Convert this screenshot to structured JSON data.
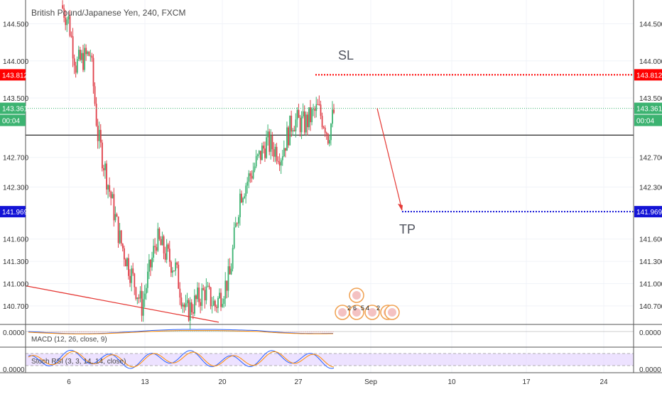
{
  "header": {
    "title": "British Pound/Japanese Yen, 240, FXCM"
  },
  "chart_data": [
    {
      "type": "candlestick",
      "title": "British Pound/Japanese Yen, 240, FXCM",
      "ylim": [
        140.45,
        144.82
      ],
      "y_ticks": [
        "144.500",
        "144.000",
        "143.500",
        "142.700",
        "142.300",
        "141.600",
        "141.300",
        "141.000",
        "140.700"
      ],
      "y_tick_values": [
        144.5,
        144.0,
        143.5,
        142.7,
        142.3,
        141.6,
        141.3,
        141.0,
        140.7
      ],
      "x_ticks": [
        "6",
        "13",
        "20",
        "27",
        "Sep",
        "10",
        "17",
        "24"
      ],
      "price_badges": {
        "sl": {
          "text": "143.812",
          "value": 143.812,
          "color": "#ff0000"
        },
        "current": {
          "text": "143.361",
          "value": 143.361,
          "color": "#3cb371"
        },
        "countdown": {
          "text": "00:04",
          "color": "#3cb371"
        },
        "tp": {
          "text": "141.969",
          "value": 141.969,
          "color": "#1414d6"
        }
      },
      "support_line": {
        "value": 143.0
      },
      "annotations": {
        "sl_label": "SL",
        "tp_label": "TP",
        "arrow": {
          "from": 143.36,
          "to": 141.99
        },
        "trendline": {
          "from": 140.97,
          "to": 140.48
        }
      },
      "event_icons": {
        "labels": [
          "2",
          "6",
          "5",
          "4",
          "2"
        ]
      },
      "colors": {
        "up": "#3cb371",
        "down": "#e0404a",
        "grid": "#f0f3f8"
      }
    },
    {
      "type": "line",
      "title": "MACD (12, 26, close, 9)",
      "y_ticks": [
        "0.0000"
      ],
      "series": [
        {
          "name": "",
          "color": "#2962ff"
        },
        {
          "name": "",
          "color": "#ff8c00"
        }
      ]
    },
    {
      "type": "line",
      "title": "Stoch RSI (3, 3, 14, 14, close)",
      "y_ticks": [
        "0.0000"
      ],
      "series": [
        {
          "name": "",
          "color": "#2962ff"
        },
        {
          "name": "",
          "color": "#ff8c00"
        }
      ],
      "band": {
        "color": "#e6d5ff"
      }
    }
  ]
}
